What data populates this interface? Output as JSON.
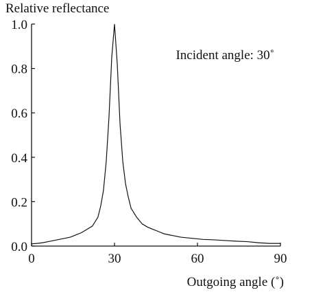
{
  "chart_data": {
    "type": "line",
    "ylabel": "Relative reflectance",
    "xlabel": "Outgoing angle (˚)",
    "annotation": "Incident angle: 30˚",
    "x": [
      0,
      2,
      4,
      6,
      8,
      10,
      12,
      14,
      16,
      18,
      20,
      22,
      24,
      25,
      26,
      27,
      28,
      29,
      30,
      31,
      32,
      33,
      34,
      35,
      36,
      38,
      40,
      42,
      44,
      46,
      48,
      50,
      54,
      58,
      62,
      66,
      70,
      74,
      78,
      82,
      86,
      90
    ],
    "series": [
      {
        "color": "#111111",
        "values": [
          0.01,
          0.012,
          0.015,
          0.02,
          0.025,
          0.03,
          0.035,
          0.04,
          0.05,
          0.06,
          0.075,
          0.09,
          0.13,
          0.18,
          0.25,
          0.38,
          0.58,
          0.85,
          1.0,
          0.82,
          0.55,
          0.38,
          0.28,
          0.22,
          0.17,
          0.13,
          0.1,
          0.085,
          0.075,
          0.065,
          0.055,
          0.05,
          0.04,
          0.035,
          0.03,
          0.028,
          0.025,
          0.022,
          0.02,
          0.015,
          0.012,
          0.012
        ]
      }
    ],
    "xlim": [
      0,
      90
    ],
    "xticks": [
      0,
      30,
      60,
      90
    ],
    "ylim": [
      0,
      1
    ],
    "yticks": [
      {
        "value": 0,
        "label": "0.0"
      },
      0.2,
      0.4,
      0.6,
      0.8,
      {
        "value": 1,
        "label": "1.0"
      }
    ]
  }
}
